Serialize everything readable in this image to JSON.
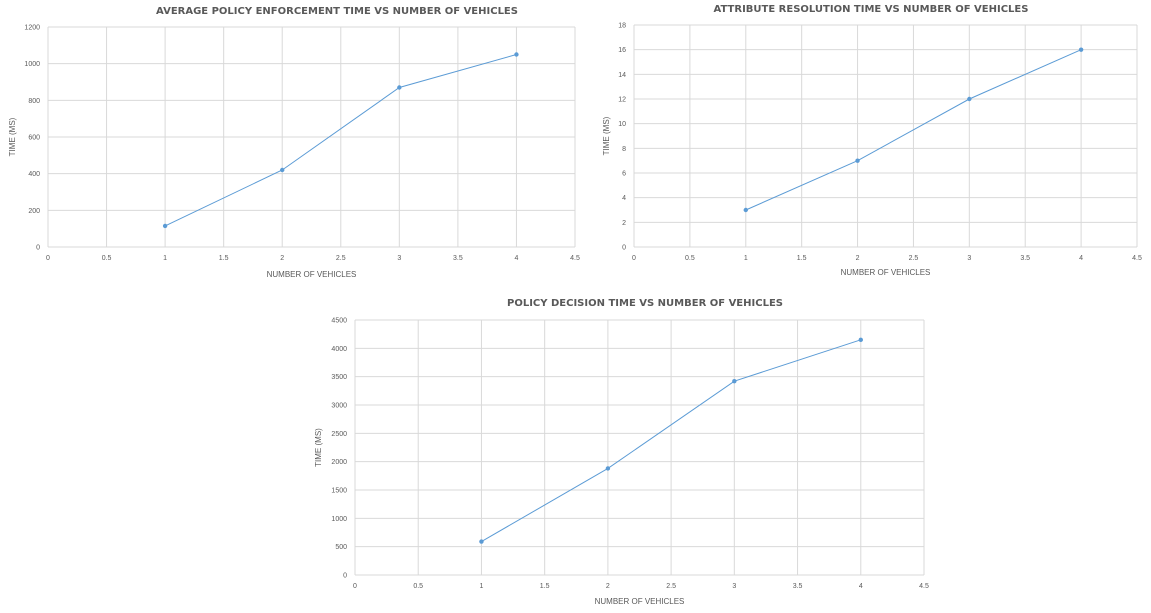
{
  "charts": [
    {
      "type": "scatter",
      "title": "AVERAGE POLICY ENFORCEMENT TIME VS NUMBER OF VEHICLES",
      "xlabel": "NUMBER OF VEHICLES",
      "ylabel": "TIME (MS)",
      "xlim": [
        0,
        4.5
      ],
      "ylim": [
        0,
        1200
      ],
      "xticks": [
        "0",
        "0.5",
        "1",
        "1.5",
        "2",
        "2.5",
        "3",
        "3.5",
        "4",
        "4.5"
      ],
      "yticks": [
        "0",
        "200",
        "400",
        "600",
        "800",
        "1000",
        "1200"
      ],
      "grid": true,
      "color": "#5b9bd5",
      "x": [
        1,
        2,
        3,
        4
      ],
      "y": [
        115,
        420,
        870,
        1050
      ]
    },
    {
      "type": "scatter",
      "title": "ATTRIBUTE RESOLUTION TIME VS NUMBER OF VEHICLES",
      "xlabel": "NUMBER OF VEHICLES",
      "ylabel": "TIME (MS)",
      "xlim": [
        0,
        4.5
      ],
      "ylim": [
        0,
        18
      ],
      "xticks": [
        "0",
        "0.5",
        "1",
        "1.5",
        "2",
        "2.5",
        "3",
        "3.5",
        "4",
        "4.5"
      ],
      "yticks": [
        "0",
        "2",
        "4",
        "6",
        "8",
        "10",
        "12",
        "14",
        "16",
        "18"
      ],
      "grid": true,
      "color": "#5b9bd5",
      "x": [
        1,
        2,
        3,
        4
      ],
      "y": [
        3,
        7,
        12,
        16
      ]
    },
    {
      "type": "scatter",
      "title": "POLICY DECISION TIME VS NUMBER OF VEHICLES",
      "xlabel": "NUMBER OF VEHICLES",
      "ylabel": "TIME (MS)",
      "xlim": [
        0,
        4.5
      ],
      "ylim": [
        0,
        4500
      ],
      "xticks": [
        "0",
        "0.5",
        "1",
        "1.5",
        "2",
        "2.5",
        "3",
        "3.5",
        "4",
        "4.5"
      ],
      "yticks": [
        "0",
        "500",
        "1000",
        "1500",
        "2000",
        "2500",
        "3000",
        "3500",
        "4000",
        "4500"
      ],
      "grid": true,
      "color": "#5b9bd5",
      "x": [
        1,
        2,
        3,
        4
      ],
      "y": [
        590,
        1880,
        3420,
        4150
      ]
    }
  ]
}
